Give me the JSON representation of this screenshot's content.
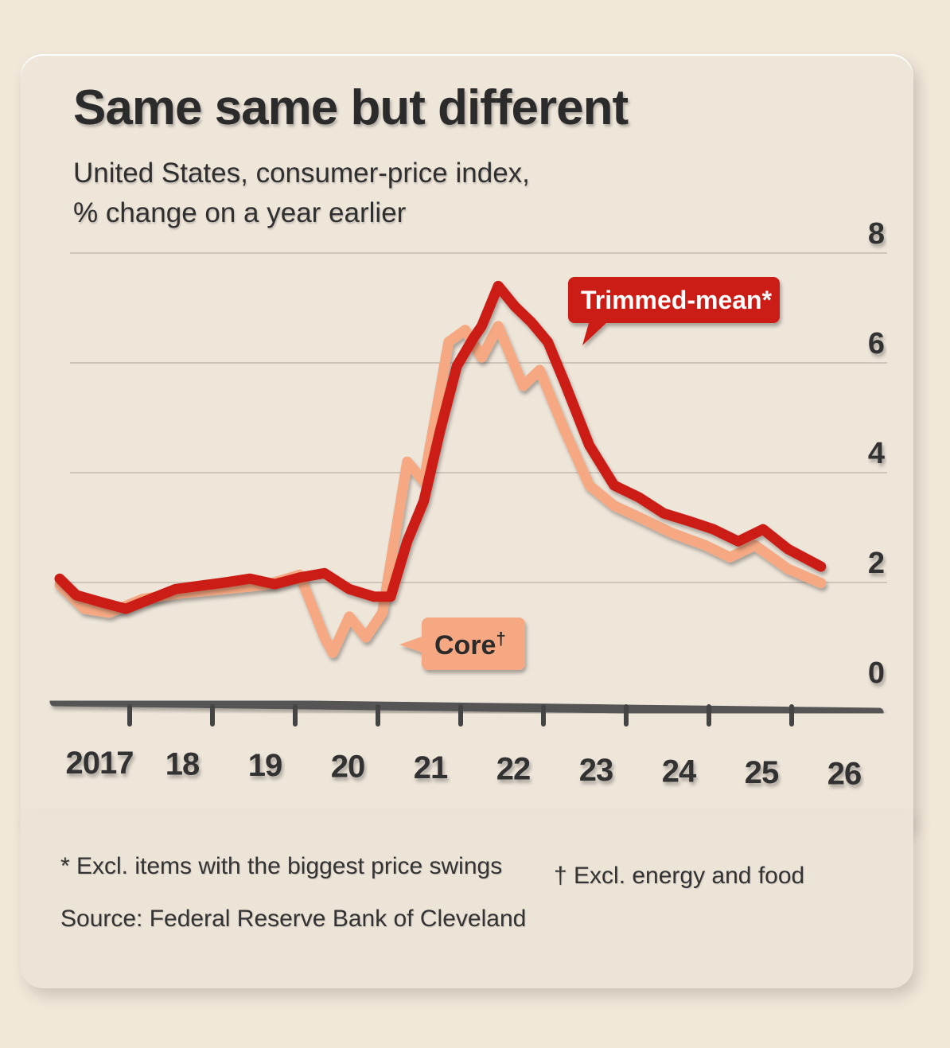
{
  "chart_data": {
    "type": "line",
    "title": "Same same but different",
    "subtitle": [
      "United States, consumer-price index,",
      "% change on a year earlier"
    ],
    "ylim": [
      0,
      8
    ],
    "yticks": [
      "0",
      "2",
      "4",
      "6",
      "8"
    ],
    "xlim": [
      2017,
      2026.5
    ],
    "xtick_labels": [
      "2017",
      "18",
      "19",
      "20",
      "21",
      "22",
      "23",
      "24",
      "25",
      "26"
    ],
    "grid": true,
    "series": [
      {
        "name": "Core†",
        "color": "#f5a882",
        "x": [
          2017.0,
          2017.3,
          2017.6,
          2018.0,
          2018.5,
          2019.0,
          2019.5,
          2019.9,
          2020.2,
          2020.3,
          2020.5,
          2020.7,
          2020.9,
          2021.2,
          2021.4,
          2021.7,
          2021.9,
          2022.1,
          2022.3,
          2022.6,
          2022.8,
          2023.1,
          2023.4,
          2023.7,
          2024.0,
          2024.4,
          2024.8,
          2025.1,
          2025.4,
          2025.8,
          2026.2
        ],
        "y": [
          1.96,
          1.52,
          1.45,
          1.7,
          1.81,
          1.88,
          1.96,
          2.14,
          1.0,
          0.72,
          1.38,
          1.0,
          1.45,
          4.2,
          3.84,
          6.38,
          6.6,
          6.1,
          6.67,
          5.58,
          5.87,
          4.78,
          3.77,
          3.4,
          3.19,
          2.9,
          2.68,
          2.46,
          2.68,
          2.25,
          1.99
        ]
      },
      {
        "name": "Trimmed-mean*",
        "color": "#cc1f16",
        "x": [
          2017.0,
          2017.2,
          2017.5,
          2017.8,
          2018.1,
          2018.4,
          2018.7,
          2019.0,
          2019.3,
          2019.6,
          2019.9,
          2020.2,
          2020.5,
          2020.8,
          2021.0,
          2021.2,
          2021.4,
          2021.6,
          2021.8,
          2022.0,
          2022.1,
          2022.3,
          2022.5,
          2022.7,
          2022.9,
          2023.1,
          2023.4,
          2023.7,
          2024.0,
          2024.3,
          2024.6,
          2024.9,
          2025.2,
          2025.5,
          2025.8,
          2026.2
        ],
        "y": [
          2.07,
          1.77,
          1.64,
          1.52,
          1.7,
          1.88,
          1.94,
          2.0,
          2.07,
          1.97,
          2.09,
          2.17,
          1.88,
          1.74,
          1.74,
          2.75,
          3.48,
          4.78,
          5.94,
          6.45,
          6.67,
          7.4,
          7.03,
          6.74,
          6.38,
          5.65,
          4.5,
          3.77,
          3.55,
          3.26,
          3.12,
          2.97,
          2.75,
          2.97,
          2.61,
          2.29
        ]
      }
    ],
    "legend_labels": {
      "trimmed": "Trimmed-mean*",
      "core_main": "Core",
      "core_mark": "†"
    }
  },
  "footnotes": {
    "trimmed": "* Excl. items with the biggest price swings",
    "core": "† Excl. energy and food",
    "source": "Source: Federal Reserve Bank of Cleveland"
  }
}
